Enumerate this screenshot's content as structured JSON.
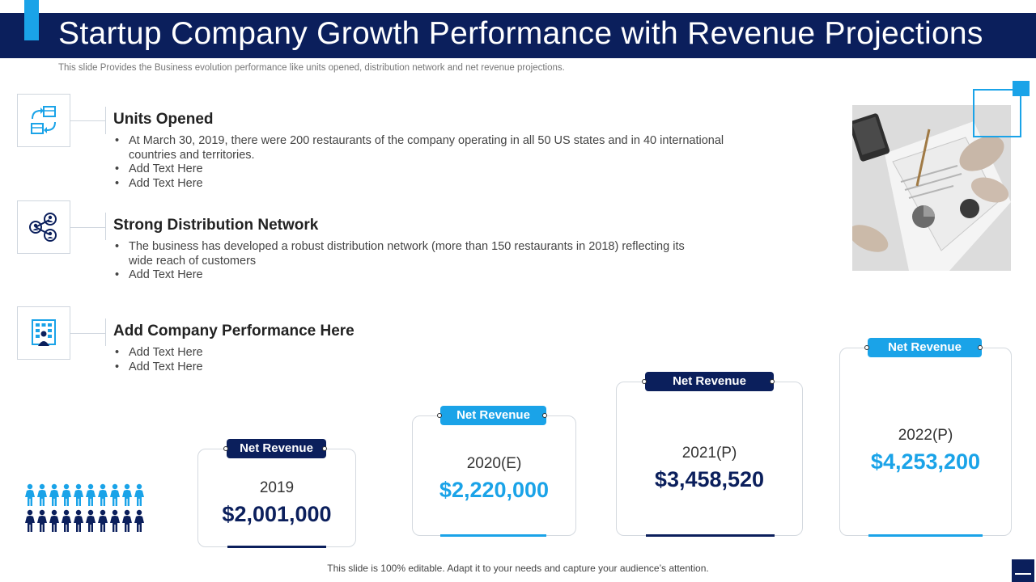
{
  "header": {
    "title": "Startup Company Growth Performance with Revenue Projections",
    "subtitle": "This slide Provides the Business evolution performance like units opened, distribution network and net revenue projections."
  },
  "sections": [
    {
      "icon": "boxes-exchange-icon",
      "title": "Units Opened",
      "bullets": [
        "At March 30, 2019, there were 200 restaurants of the company operating in all 50 US states and in 40 international countries and territories.",
        "Add Text Here",
        "Add Text Here"
      ]
    },
    {
      "icon": "network-people-icon",
      "title": "Strong Distribution Network",
      "bullets": [
        "The business has developed  a robust distribution network (more than 150 restaurants in 2018) reflecting its wide reach of customers",
        "Add Text Here"
      ]
    },
    {
      "icon": "building-person-icon",
      "title": "Add Company Performance Here",
      "bullets": [
        "Add Text Here",
        "Add Text Here"
      ]
    }
  ],
  "revenue_cards": [
    {
      "tag": "Net Revenue",
      "year": "2019",
      "value": "$2,001,000",
      "style": "dark"
    },
    {
      "tag": "Net Revenue",
      "year": "2020(E)",
      "value": "$2,220,000",
      "style": "light"
    },
    {
      "tag": "Net Revenue",
      "year": "2021(P)",
      "value": "$3,458,520",
      "style": "dark"
    },
    {
      "tag": "Net Revenue",
      "year": "2022(P)",
      "value": "$4,253,200",
      "style": "light"
    }
  ],
  "colors": {
    "navy": "#0b1f5c",
    "accent": "#1aa3e8"
  },
  "footer": "This slide is 100% editable. Adapt it to your needs and capture your audience’s attention."
}
